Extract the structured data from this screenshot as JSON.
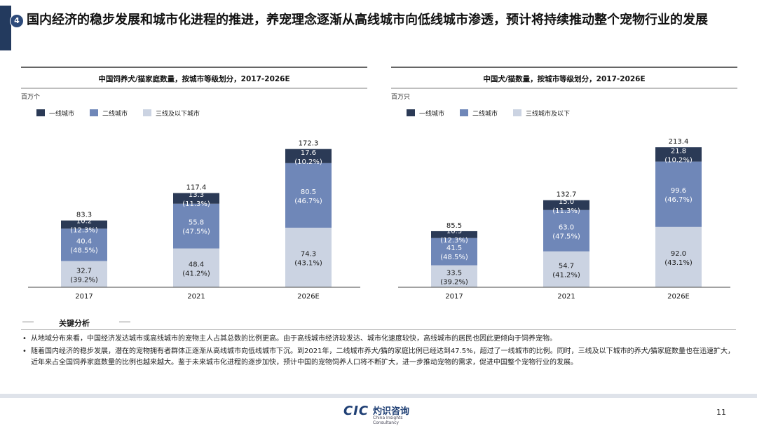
{
  "header": {
    "badge": "4",
    "title": "国内经济的稳步发展和城市化进程的推进，养宠理念逐渐从高线城市向低线城市渗透，预计将持续推动整个宠物行业的发展"
  },
  "colors": {
    "tier1": "#2b3a56",
    "tier2": "#6f87b8",
    "tier3": "#cbd3e2",
    "accent": "#233a5e"
  },
  "chart_data": [
    {
      "type": "bar",
      "stacked": true,
      "title": "中国饲养犬/猫家庭数量，按城市等级划分，2017-2026E",
      "unit": "百万个",
      "categories": [
        "2017",
        "2021",
        "2026E"
      ],
      "legend": [
        "一线城市",
        "二线城市",
        "三线及以下城市"
      ],
      "totals": [
        "83.3",
        "117.4",
        "172.3"
      ],
      "series": [
        {
          "name": "三线及以下城市",
          "values": [
            32.7,
            48.4,
            74.3
          ],
          "shares": [
            "(39.2%)",
            "(41.2%)",
            "(43.1%)"
          ]
        },
        {
          "name": "二线城市",
          "values": [
            40.4,
            55.8,
            80.5
          ],
          "shares": [
            "(48.5%)",
            "(47.5%)",
            "(46.7%)"
          ]
        },
        {
          "name": "一线城市",
          "values": [
            10.2,
            13.3,
            17.6
          ],
          "shares": [
            "(12.3%)",
            "(11.3%)",
            "(10.2%)"
          ]
        }
      ],
      "ylim": [
        0,
        180
      ]
    },
    {
      "type": "bar",
      "stacked": true,
      "title": "中国犬/猫数量，按城市等级划分，2017-2026E",
      "unit": "百万只",
      "categories": [
        "2017",
        "2021",
        "2026E"
      ],
      "legend": [
        "一线城市",
        "二线城市",
        "三线城市及以下"
      ],
      "totals": [
        "85.5",
        "132.7",
        "213.4"
      ],
      "series": [
        {
          "name": "三线城市及以下",
          "values": [
            33.5,
            54.7,
            92.0
          ],
          "shares": [
            "(39.2%)",
            "(41.2%)",
            "(43.1%)"
          ]
        },
        {
          "name": "二线城市",
          "values": [
            41.5,
            63.0,
            99.6
          ],
          "shares": [
            "(48.5%)",
            "(47.5%)",
            "(46.7%)"
          ]
        },
        {
          "name": "一线城市",
          "values": [
            10.5,
            15.0,
            21.8
          ],
          "shares": [
            "(12.3%)",
            "(11.3%)",
            "(10.2%)"
          ]
        }
      ],
      "ylim": [
        0,
        220
      ]
    }
  ],
  "analysis": {
    "label": "关键分析",
    "bullets": [
      "从地域分布来看，中国经济发达城市或高线城市的宠物主人占其总数的比例更高。由于高线城市经济较发达、城市化速度较快，高线城市的居民也因此更倾向于饲养宠物。",
      "随着国内经济的稳步发展，潜在的宠物拥有者群体正逐渐从高线城市向低线城市下沉。到2021年，二线城市养犬/猫的家庭比例已经达到47.5%，超过了一线城市的比例。同时，三线及以下城市的养犬/猫家庭数量也在迅速扩大，近年来占全国饲养家庭数量的比例也越来越大。鉴于未来城市化进程的逐步加快，预计中国的宠物饲养人口将不断扩大，进一步推动宠物的需求，促进中国整个宠物行业的发展。"
    ]
  },
  "footer": {
    "logo_mark": "CIC",
    "logo_name": "灼识咨询",
    "logo_sub": "China Insights Consultancy",
    "page_number": "11"
  }
}
